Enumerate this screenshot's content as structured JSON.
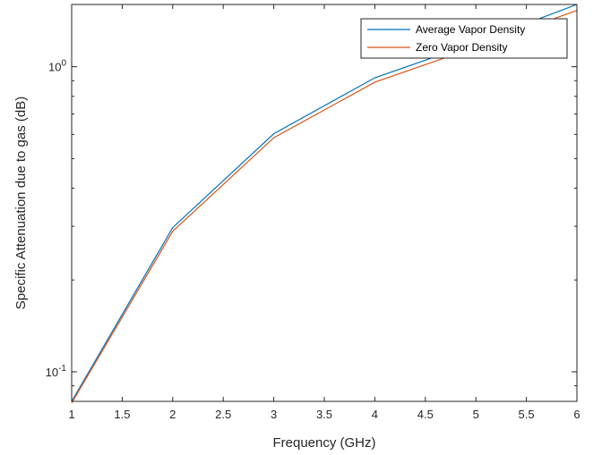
{
  "chart_data": {
    "type": "line",
    "title": "",
    "xlabel": "Frequency (GHz)",
    "ylabel": "Specific Attenuation due to gas (dB)",
    "xscale": "linear",
    "yscale": "log",
    "xlim": [
      1,
      6
    ],
    "ylim": [
      0.08,
      1.6
    ],
    "grid": false,
    "legend_location": "top-right",
    "x_ticks": [
      "1",
      "1.5",
      "2",
      "2.5",
      "3",
      "3.5",
      "4",
      "4.5",
      "5",
      "5.5",
      "6"
    ],
    "y_ticks": [
      {
        "value": 0.1,
        "base": "10",
        "exponent": "-1"
      },
      {
        "value": 1,
        "base": "10",
        "exponent": "0"
      }
    ],
    "x": [
      1,
      2,
      3,
      4,
      5,
      6
    ],
    "series": [
      {
        "name": "Average Vapor Density",
        "color": "#0072BD",
        "values": [
          0.08,
          0.297,
          0.603,
          0.92,
          1.2,
          1.6
        ]
      },
      {
        "name": "Zero Vapor Density",
        "color": "#D95319",
        "values": [
          0.079,
          0.289,
          0.585,
          0.89,
          1.16,
          1.53
        ]
      }
    ]
  }
}
